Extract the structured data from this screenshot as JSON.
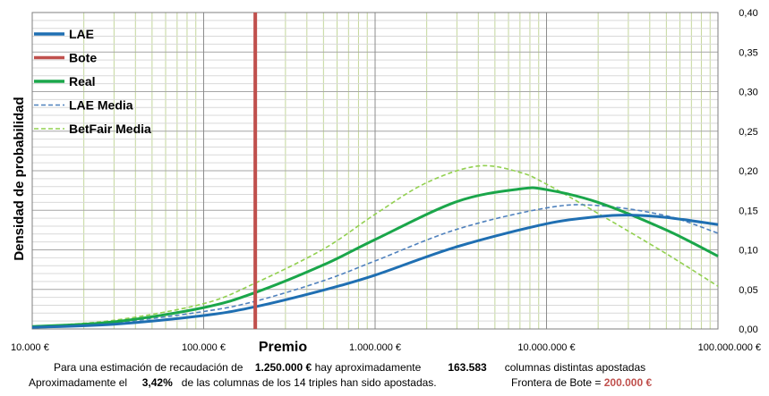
{
  "chart_data": {
    "type": "line",
    "title": "",
    "xlabel": "Premio",
    "ylabel": "Densidad de probabilidad",
    "x_scale": "log",
    "xlim": [
      10000,
      100000000
    ],
    "ylim": [
      0,
      0.4
    ],
    "x_ticks": [
      10000,
      100000,
      1000000,
      10000000,
      100000000
    ],
    "x_tick_labels": [
      "10.000 €",
      "100.000 €",
      "1.000.000 €",
      "10.000.000 €",
      "100.000.000 €"
    ],
    "y_ticks": [
      0,
      0.05,
      0.1,
      0.15,
      0.2,
      0.25,
      0.3,
      0.35,
      0.4
    ],
    "y_tick_labels": [
      "0,00",
      "0,05",
      "0,10",
      "0,15",
      "0,20",
      "0,25",
      "0,30",
      "0,35",
      "0,40"
    ],
    "y_axis_side": "right",
    "grid": true,
    "legend_position": "top-left",
    "series": [
      {
        "name": "LAE",
        "color": "#1f6fb2",
        "style": "solid",
        "points": [
          [
            10000,
            0.002
          ],
          [
            30000,
            0.006
          ],
          [
            100000,
            0.017
          ],
          [
            200000,
            0.028
          ],
          [
            500000,
            0.049
          ],
          [
            1000000,
            0.068
          ],
          [
            3000000,
            0.104
          ],
          [
            10000000,
            0.133
          ],
          [
            20000000,
            0.142
          ],
          [
            30000000,
            0.144
          ],
          [
            50000000,
            0.141
          ],
          [
            100000000,
            0.132
          ]
        ]
      },
      {
        "name": "Bote",
        "color": "#c0504d",
        "style": "solid",
        "vertical_at": 200000
      },
      {
        "name": "Real",
        "color": "#1aa64a",
        "style": "solid",
        "points": [
          [
            10000,
            0.003
          ],
          [
            30000,
            0.009
          ],
          [
            100000,
            0.027
          ],
          [
            200000,
            0.046
          ],
          [
            500000,
            0.081
          ],
          [
            1000000,
            0.113
          ],
          [
            3000000,
            0.161
          ],
          [
            7000000,
            0.177
          ],
          [
            10000000,
            0.176
          ],
          [
            20000000,
            0.16
          ],
          [
            50000000,
            0.125
          ],
          [
            100000000,
            0.092
          ]
        ]
      },
      {
        "name": "LAE Media",
        "color": "#4f81bd",
        "style": "dashed",
        "points": [
          [
            10000,
            0.003
          ],
          [
            30000,
            0.008
          ],
          [
            100000,
            0.022
          ],
          [
            200000,
            0.035
          ],
          [
            500000,
            0.061
          ],
          [
            1000000,
            0.086
          ],
          [
            3000000,
            0.126
          ],
          [
            10000000,
            0.153
          ],
          [
            20000000,
            0.156
          ],
          [
            50000000,
            0.143
          ],
          [
            100000000,
            0.121
          ]
        ]
      },
      {
        "name": "BetFair Media",
        "color": "#92d050",
        "style": "dashed",
        "points": [
          [
            10000,
            0.003
          ],
          [
            30000,
            0.011
          ],
          [
            100000,
            0.032
          ],
          [
            200000,
            0.058
          ],
          [
            500000,
            0.101
          ],
          [
            1000000,
            0.145
          ],
          [
            2000000,
            0.185
          ],
          [
            4000000,
            0.206
          ],
          [
            7000000,
            0.198
          ],
          [
            10000000,
            0.183
          ],
          [
            20000000,
            0.146
          ],
          [
            50000000,
            0.095
          ],
          [
            100000000,
            0.054
          ]
        ]
      }
    ]
  },
  "footer": {
    "line1_pre": "Para  una estimación de recaudación de",
    "recaudacion": "1.250.000 €",
    "line1_mid": "hay aproximadamente",
    "columnas": "163.583",
    "line1_post": "columnas distintas apostadas",
    "line2_pre": "Aproximadamente el",
    "porcentaje": "3,42%",
    "line2_mid": "de las columnas de los 14 triples han sido apostadas.",
    "frontera_label": "Frontera de Bote =",
    "frontera_value": "200.000 €"
  }
}
